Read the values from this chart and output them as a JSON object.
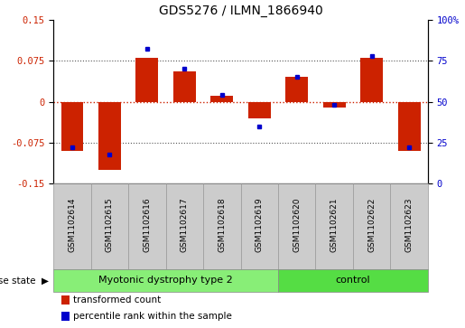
{
  "title": "GDS5276 / ILMN_1866940",
  "samples": [
    "GSM1102614",
    "GSM1102615",
    "GSM1102616",
    "GSM1102617",
    "GSM1102618",
    "GSM1102619",
    "GSM1102620",
    "GSM1102621",
    "GSM1102622",
    "GSM1102623"
  ],
  "red_values": [
    -0.09,
    -0.125,
    0.08,
    0.055,
    0.01,
    -0.03,
    0.045,
    -0.01,
    0.08,
    -0.09
  ],
  "blue_values": [
    22,
    18,
    82,
    70,
    54,
    35,
    65,
    48,
    78,
    22
  ],
  "ylim_left": [
    -0.15,
    0.15
  ],
  "ylim_right": [
    0,
    100
  ],
  "yticks_left": [
    -0.15,
    -0.075,
    0,
    0.075,
    0.15
  ],
  "yticks_right": [
    0,
    25,
    50,
    75,
    100
  ],
  "ytick_labels_left": [
    "-0.15",
    "-0.075",
    "0",
    "0.075",
    "0.15"
  ],
  "ytick_labels_right": [
    "0",
    "25",
    "50",
    "75",
    "100%"
  ],
  "group1_label": "Myotonic dystrophy type 2",
  "group2_label": "control",
  "group1_indices": [
    0,
    1,
    2,
    3,
    4,
    5
  ],
  "group2_indices": [
    6,
    7,
    8,
    9
  ],
  "disease_state_label": "disease state",
  "legend_red": "transformed count",
  "legend_blue": "percentile rank within the sample",
  "bar_color": "#CC2200",
  "dot_color": "#0000CC",
  "group1_color": "#88EE77",
  "group2_color": "#55DD44",
  "hline_color": "#CC2200",
  "dotted_color": "#555555",
  "bg_color": "#FFFFFF",
  "label_area_color": "#CCCCCC",
  "title_fontsize": 10,
  "tick_fontsize": 7.5,
  "sample_fontsize": 6.5,
  "group_fontsize": 8,
  "legend_fontsize": 7.5,
  "ds_fontsize": 7.5,
  "bar_width": 0.6
}
